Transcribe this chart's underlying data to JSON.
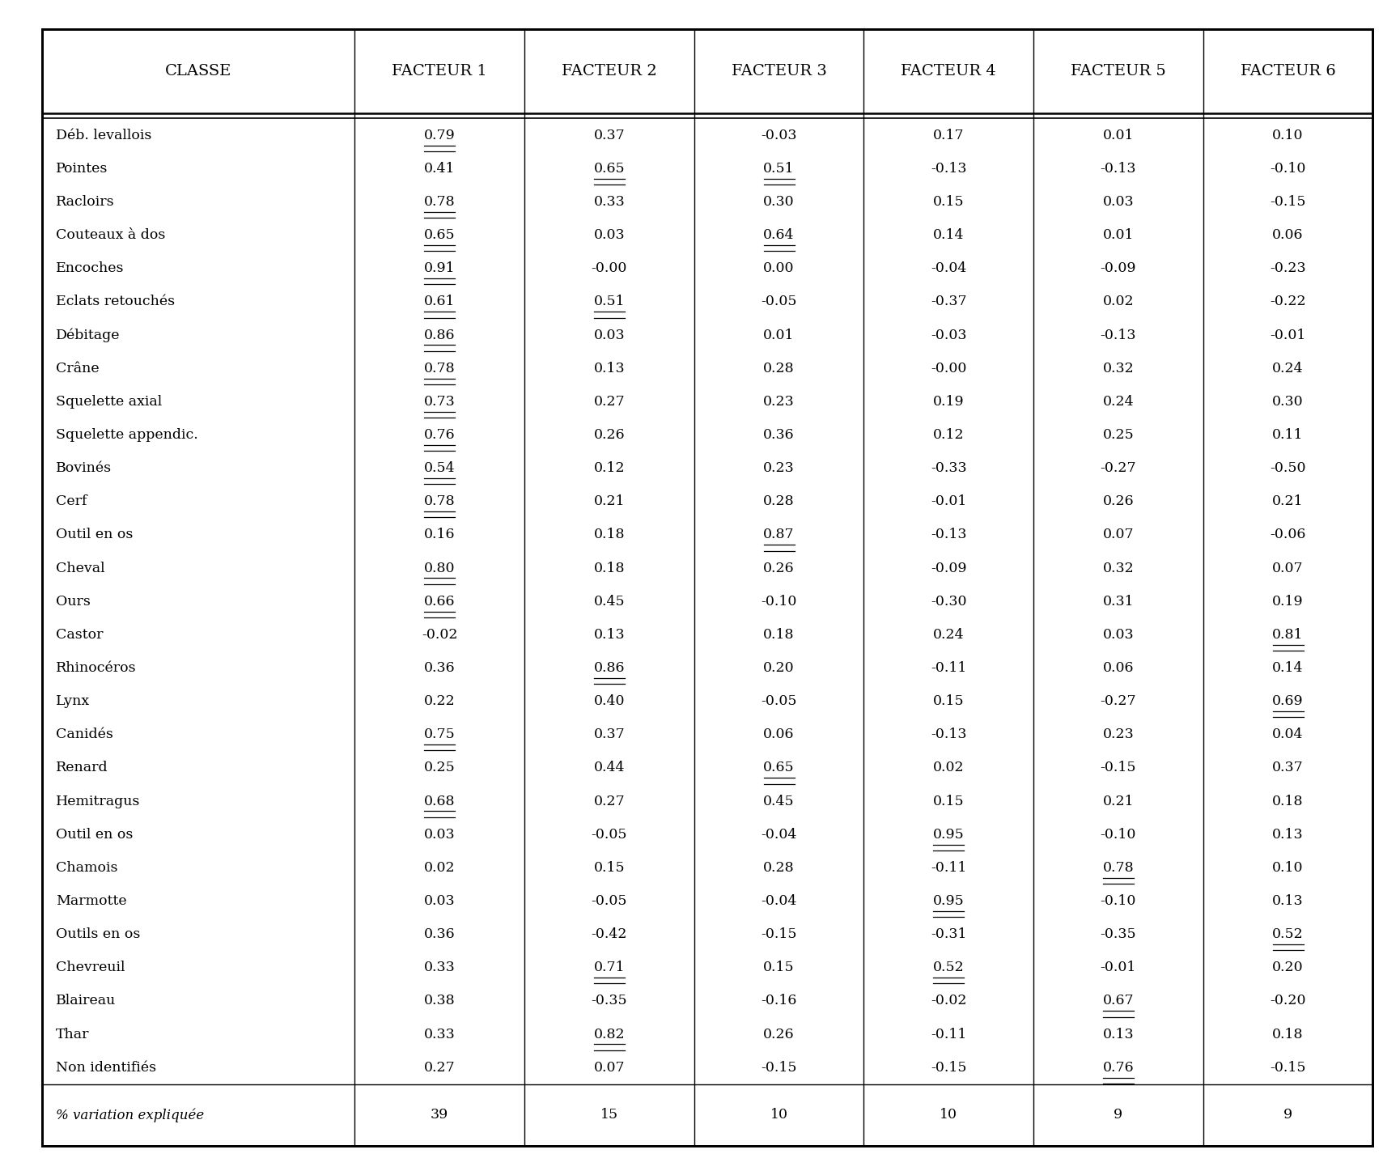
{
  "headers": [
    "CLASSE",
    "FACTEUR 1",
    "FACTEUR 2",
    "FACTEUR 3",
    "FACTEUR 4",
    "FACTEUR 5",
    "FACTEUR 6"
  ],
  "rows": [
    [
      "Déb. levallois",
      "0.79",
      "0.37",
      "-0.03",
      "0.17",
      "0.01",
      "0.10"
    ],
    [
      "Pointes",
      "0.41",
      "0.65",
      "0.51",
      "-0.13",
      "-0.13",
      "-0.10"
    ],
    [
      "Racloirs",
      "0.78",
      "0.33",
      "0.30",
      "0.15",
      "0.03",
      "-0.15"
    ],
    [
      "Couteaux à dos",
      "0.65",
      "0.03",
      "0.64",
      "0.14",
      "0.01",
      "0.06"
    ],
    [
      "Encoches",
      "0.91",
      "-0.00",
      "0.00",
      "-0.04",
      "-0.09",
      "-0.23"
    ],
    [
      "Eclats retouchés",
      "0.61",
      "0.51",
      "-0.05",
      "-0.37",
      "0.02",
      "-0.22"
    ],
    [
      "Débitage",
      "0.86",
      "0.03",
      "0.01",
      "-0.03",
      "-0.13",
      "-0.01"
    ],
    [
      "Crâne",
      "0.78",
      "0.13",
      "0.28",
      "-0.00",
      "0.32",
      "0.24"
    ],
    [
      "Squelette axial",
      "0.73",
      "0.27",
      "0.23",
      "0.19",
      "0.24",
      "0.30"
    ],
    [
      "Squelette appendic.",
      "0.76",
      "0.26",
      "0.36",
      "0.12",
      "0.25",
      "0.11"
    ],
    [
      "Bovinés",
      "0.54",
      "0.12",
      "0.23",
      "-0.33",
      "-0.27",
      "-0.50"
    ],
    [
      "Cerf",
      "0.78",
      "0.21",
      "0.28",
      "-0.01",
      "0.26",
      "0.21"
    ],
    [
      "Outil en os",
      "0.16",
      "0.18",
      "0.87",
      "-0.13",
      "0.07",
      "-0.06"
    ],
    [
      "Cheval",
      "0.80",
      "0.18",
      "0.26",
      "-0.09",
      "0.32",
      "0.07"
    ],
    [
      "Ours",
      "0.66",
      "0.45",
      "-0.10",
      "-0.30",
      "0.31",
      "0.19"
    ],
    [
      "Castor",
      "-0.02",
      "0.13",
      "0.18",
      "0.24",
      "0.03",
      "0.81"
    ],
    [
      "Rhinocéros",
      "0.36",
      "0.86",
      "0.20",
      "-0.11",
      "0.06",
      "0.14"
    ],
    [
      "Lynx",
      "0.22",
      "0.40",
      "-0.05",
      "0.15",
      "-0.27",
      "0.69"
    ],
    [
      "Canidés",
      "0.75",
      "0.37",
      "0.06",
      "-0.13",
      "0.23",
      "0.04"
    ],
    [
      "Renard",
      "0.25",
      "0.44",
      "0.65",
      "0.02",
      "-0.15",
      "0.37"
    ],
    [
      "Hemitragus",
      "0.68",
      "0.27",
      "0.45",
      "0.15",
      "0.21",
      "0.18"
    ],
    [
      "Outil en os",
      "0.03",
      "-0.05",
      "-0.04",
      "0.95",
      "-0.10",
      "0.13"
    ],
    [
      "Chamois",
      "0.02",
      "0.15",
      "0.28",
      "-0.11",
      "0.78",
      "0.10"
    ],
    [
      "Marmotte",
      "0.03",
      "-0.05",
      "-0.04",
      "0.95",
      "-0.10",
      "0.13"
    ],
    [
      "Outils en os",
      "0.36",
      "-0.42",
      "-0.15",
      "-0.31",
      "-0.35",
      "0.52"
    ],
    [
      "Chevreuil",
      "0.33",
      "0.71",
      "0.15",
      "0.52",
      "-0.01",
      "0.20"
    ],
    [
      "Blaireau",
      "0.38",
      "-0.35",
      "-0.16",
      "-0.02",
      "0.67",
      "-0.20"
    ],
    [
      "Thar",
      "0.33",
      "0.82",
      "0.26",
      "-0.11",
      "0.13",
      "0.18"
    ],
    [
      "Non identifiés",
      "0.27",
      "0.07",
      "-0.15",
      "-0.15",
      "0.76",
      "-0.15"
    ]
  ],
  "footer": [
    "% variation expliquée",
    "39",
    "15",
    "10",
    "10",
    "9",
    "9"
  ],
  "underlined": [
    [
      0,
      1
    ],
    [
      1,
      2
    ],
    [
      1,
      3
    ],
    [
      2,
      1
    ],
    [
      3,
      1
    ],
    [
      3,
      3
    ],
    [
      4,
      1
    ],
    [
      5,
      1
    ],
    [
      5,
      2
    ],
    [
      6,
      1
    ],
    [
      7,
      1
    ],
    [
      8,
      1
    ],
    [
      9,
      1
    ],
    [
      10,
      1
    ],
    [
      11,
      1
    ],
    [
      12,
      3
    ],
    [
      13,
      1
    ],
    [
      14,
      1
    ],
    [
      15,
      6
    ],
    [
      16,
      2
    ],
    [
      17,
      6
    ],
    [
      18,
      1
    ],
    [
      19,
      3
    ],
    [
      20,
      1
    ],
    [
      21,
      4
    ],
    [
      22,
      5
    ],
    [
      23,
      4
    ],
    [
      24,
      6
    ],
    [
      25,
      2
    ],
    [
      25,
      4
    ],
    [
      26,
      5
    ],
    [
      27,
      2
    ],
    [
      28,
      5
    ]
  ],
  "bg_color": "#ffffff",
  "text_color": "#000000",
  "header_fontsize": 14,
  "cell_fontsize": 12.5,
  "footer_fontsize": 12,
  "fig_width": 17.31,
  "fig_height": 14.52
}
